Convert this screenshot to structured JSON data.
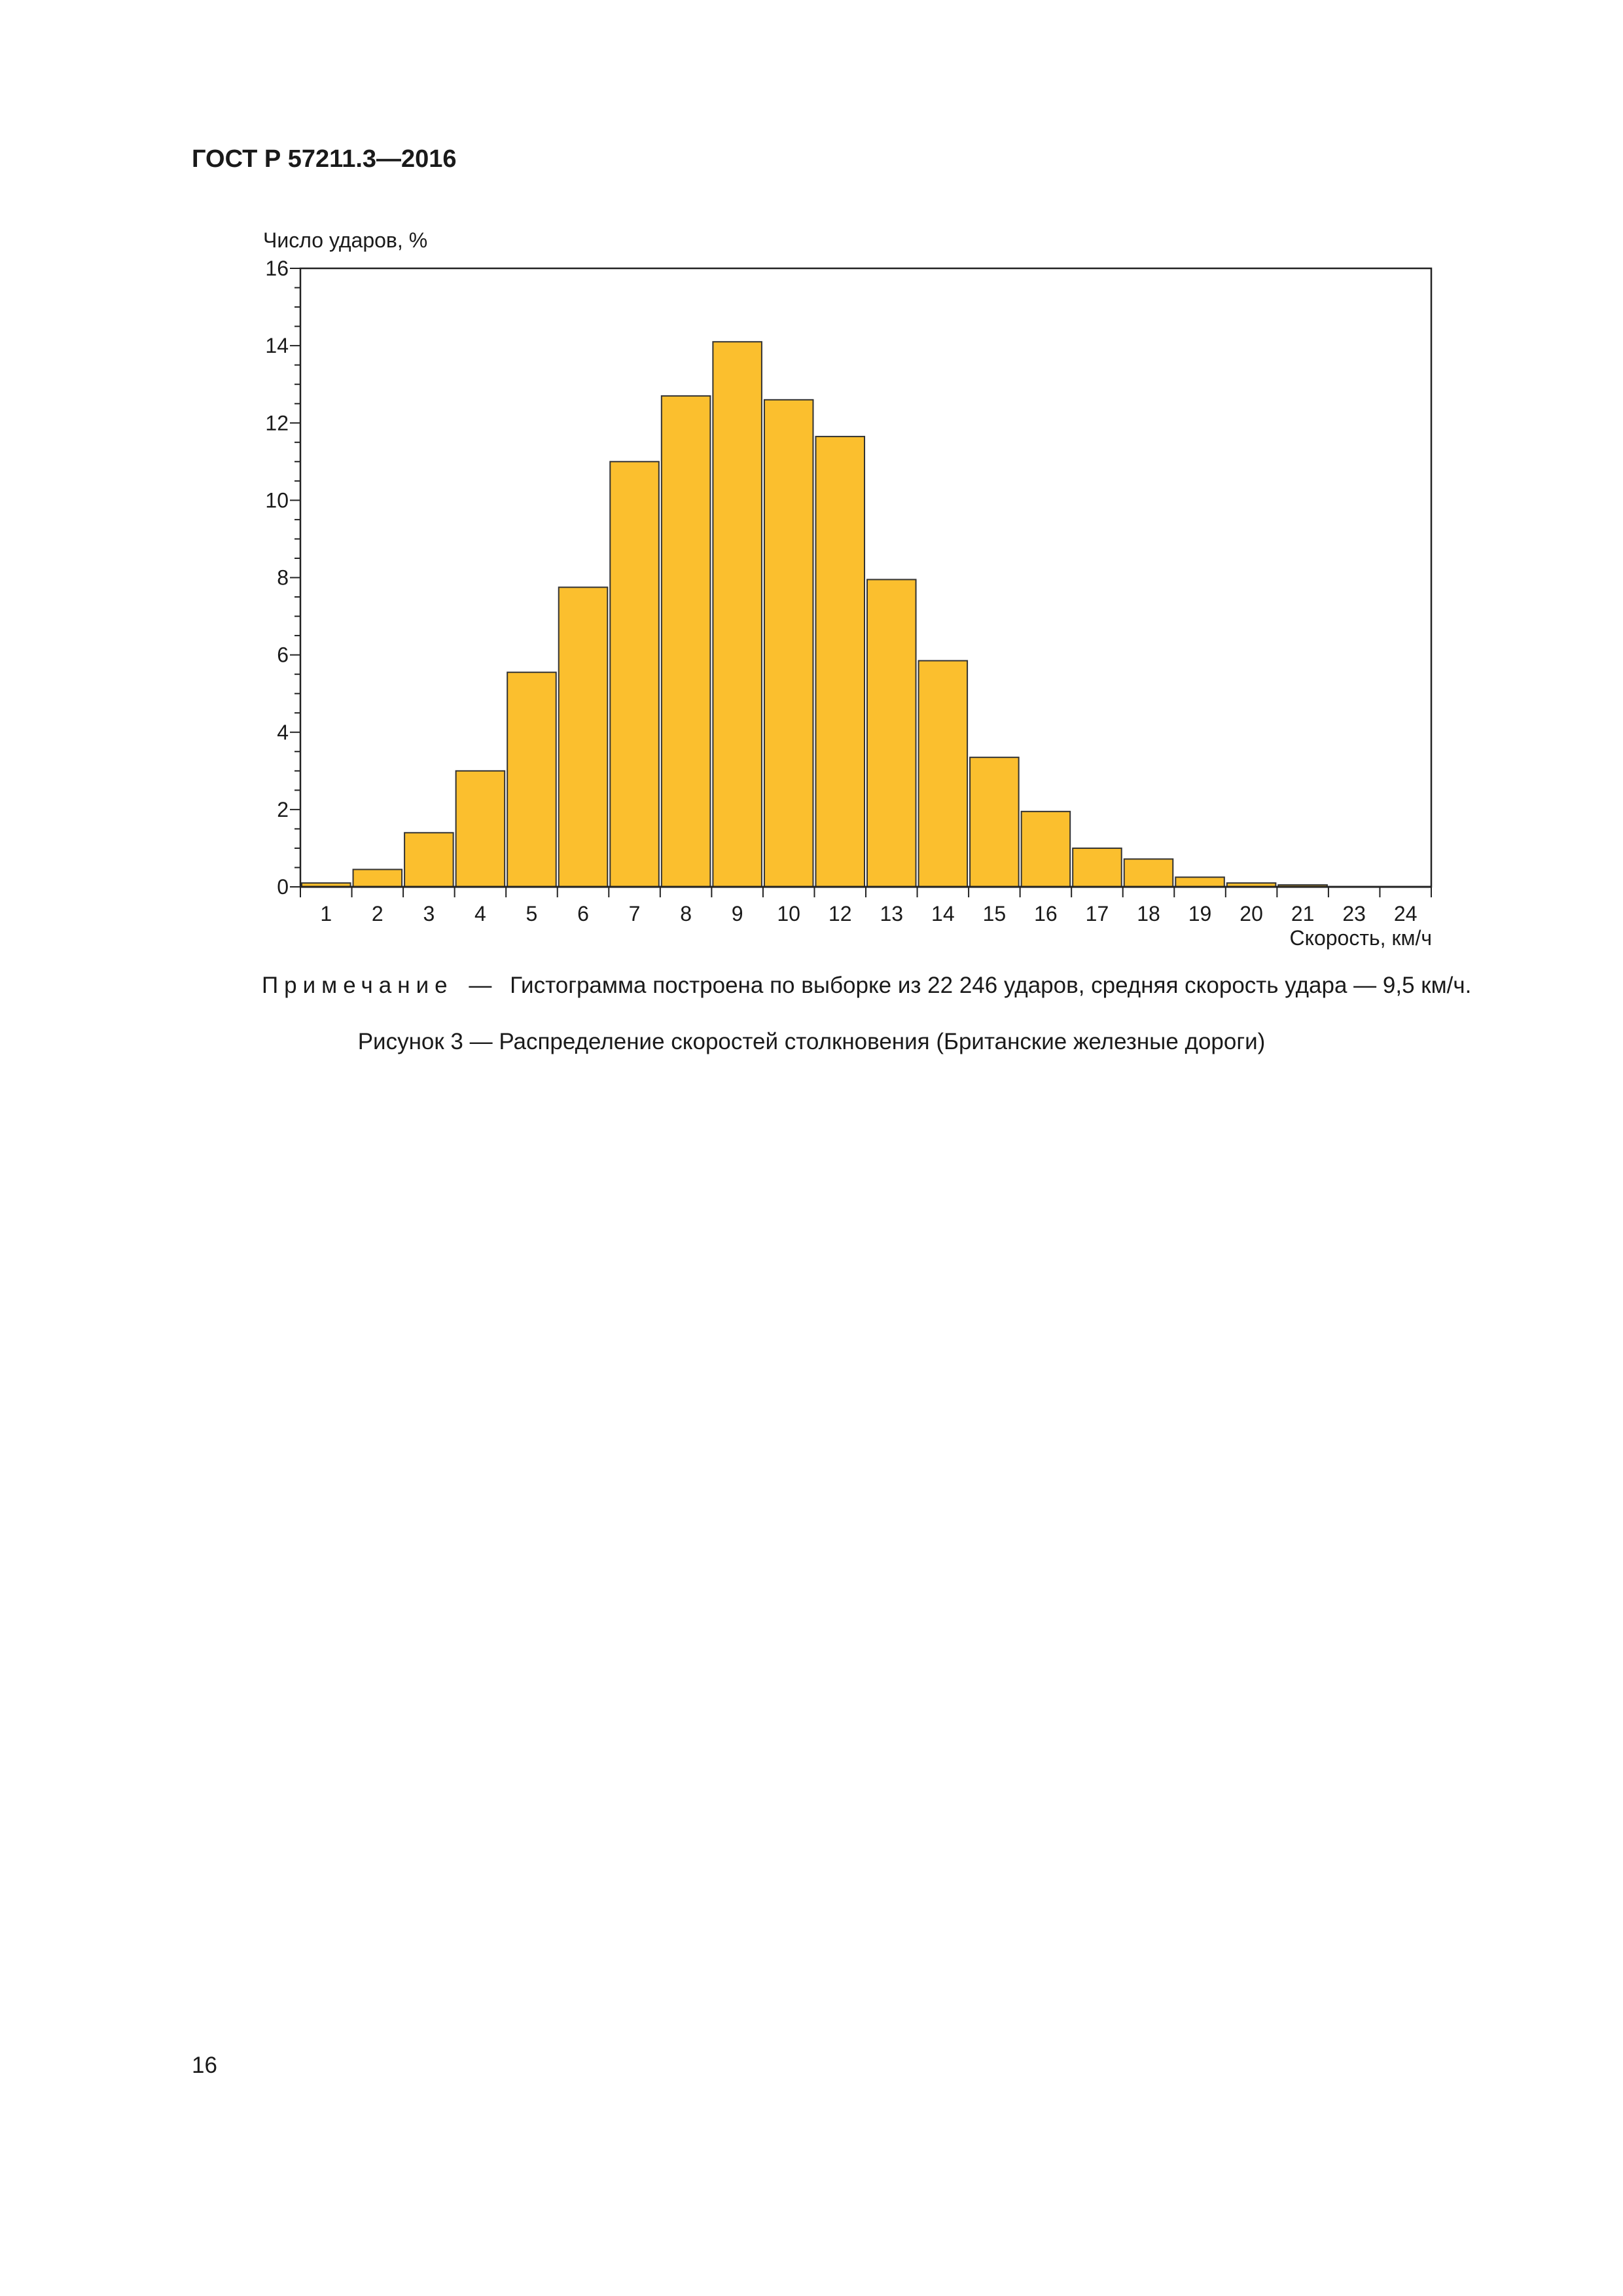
{
  "document": {
    "header": "ГОСТ Р 57211.3—2016",
    "note_label": "Примечание",
    "note_dash": "—",
    "note_text": "Гистограмма построена по выборке из 22 246 ударов, средняя скорость удара — 9,5 км/ч.",
    "caption": "Рисунок 3 — Распределение скоростей столкновения (Британские железные дороги)",
    "page_number": "16"
  },
  "chart_data": {
    "type": "bar",
    "title": "",
    "xlabel": "Скорость, км/ч",
    "ylabel": "Число ударов, %",
    "categories": [
      "1",
      "2",
      "3",
      "4",
      "5",
      "6",
      "7",
      "8",
      "9",
      "10",
      "12",
      "13",
      "14",
      "15",
      "16",
      "17",
      "18",
      "19",
      "20",
      "21",
      "23",
      "24"
    ],
    "values": [
      0.1,
      0.45,
      1.4,
      3.0,
      5.55,
      7.75,
      11.0,
      12.7,
      14.1,
      12.6,
      11.65,
      7.95,
      5.85,
      3.35,
      1.95,
      1.0,
      0.72,
      0.25,
      0.1,
      0.05,
      0,
      0
    ],
    "ylim": [
      0,
      16
    ],
    "yticks": [
      0,
      2,
      4,
      6,
      8,
      10,
      12,
      14,
      16
    ],
    "grid": false,
    "bar_color": "#FBBF2E",
    "bar_edge_color": "#333333"
  }
}
